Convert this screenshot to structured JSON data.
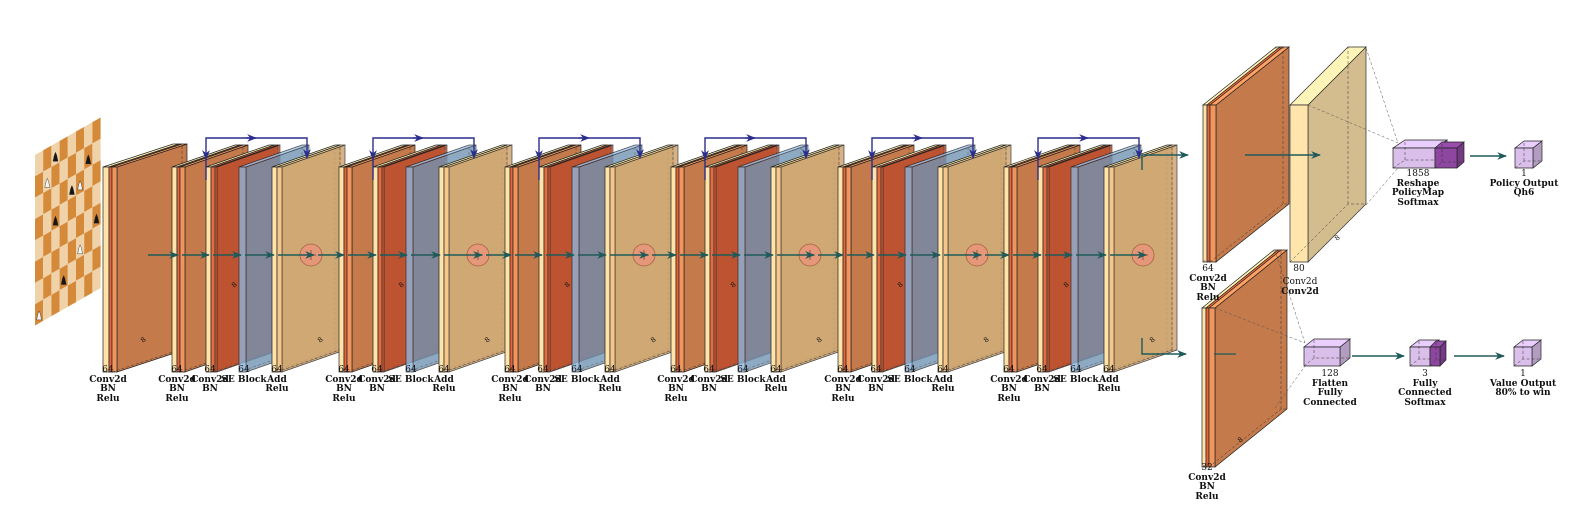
{
  "colors": {
    "relu": "#FFE3A8",
    "conv": "#F0955C",
    "bn": "#E8643A",
    "se": "#8CB4DC",
    "add": "#FDC98A",
    "sum": "#E8977A",
    "output": "#D9BFEA",
    "output_dark": "#8E47A0",
    "arrow": "#1F5A5A",
    "skip": "#2B2E8C",
    "board_light": "#F0D2A8",
    "board_dark": "#D58A3A"
  },
  "input": {
    "icon": "chessboard-icon"
  },
  "stem": {
    "channels": "64",
    "line1": "Conv2d",
    "line2": "BN",
    "line3": "Relu",
    "depth": "8"
  },
  "block_labels": {
    "a": {
      "channels": "64",
      "line1": "Conv2d",
      "line2": "BN",
      "line3": "Relu"
    },
    "b": {
      "channels": "64",
      "line1": "Conv2d",
      "line2": "BN"
    },
    "c": {
      "channels": "64",
      "line1": "SE Block"
    },
    "d": {
      "channels": "64",
      "line1": "Add",
      "line2": "Relu"
    },
    "depth": "8"
  },
  "policy_conv": {
    "channels": "64",
    "line1": "Conv2d",
    "line2": "BN",
    "line3": "Relu"
  },
  "policy_conv2": {
    "channels": "80",
    "line1": "Conv2d",
    "depth": "8"
  },
  "policy_out": {
    "size": "1858",
    "line1": "Reshape",
    "line2": "PolicyMap",
    "line3": "Softmax"
  },
  "policy_result": {
    "size": "1",
    "line1": "Policy Output",
    "line2": "Qh6"
  },
  "value_conv": {
    "channels": "32",
    "line1": "Conv2d",
    "line2": "BN",
    "line3": "Relu",
    "depth": "8"
  },
  "value_flatten": {
    "size": "128",
    "line1": "Flatten",
    "line2": "Fully Connected"
  },
  "value_fc": {
    "size": "3",
    "line1": "Fully Connected",
    "line2": "Softmax"
  },
  "value_result": {
    "size": "1",
    "line1": "Value Output",
    "line2": "80% to win"
  }
}
